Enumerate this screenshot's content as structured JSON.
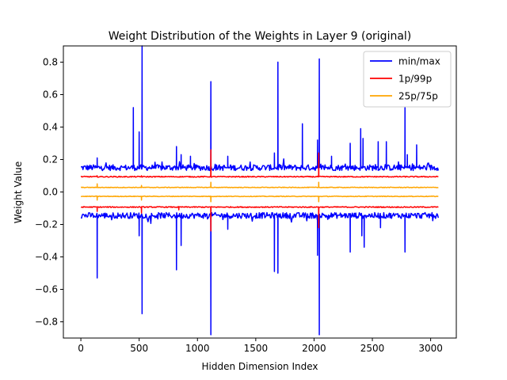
{
  "chart_data": {
    "type": "line",
    "title": "Weight Distribution of the Weights in Layer 9 (original)",
    "xlabel": "Hidden Dimension Index",
    "ylabel": "Weight Value",
    "xlim": [
      -150,
      3220
    ],
    "ylim": [
      -0.9,
      0.9
    ],
    "x_ticks": [
      0,
      500,
      1000,
      1500,
      2000,
      2500,
      3000
    ],
    "y_ticks": [
      -0.8,
      -0.6,
      -0.4,
      -0.2,
      0.0,
      0.2,
      0.4,
      0.6,
      0.8
    ],
    "x_tick_labels": [
      "0",
      "500",
      "1000",
      "1500",
      "2000",
      "2500",
      "3000"
    ],
    "y_tick_labels": [
      "−0.8",
      "−0.6",
      "−0.4",
      "−0.2",
      "0.0",
      "0.2",
      "0.4",
      "0.6",
      "0.8"
    ],
    "grid": false,
    "legend_position": "top-right",
    "legend": [
      {
        "label": "min/max",
        "color": "#0000ff"
      },
      {
        "label": "1p/99p",
        "color": "#ff0000"
      },
      {
        "label": "25p/75p",
        "color": "#ffa500"
      }
    ],
    "x_range": [
      0,
      3071
    ],
    "series": [
      {
        "name": "min/max",
        "color": "#0000ff",
        "upper_baseline": 0.15,
        "lower_baseline": -0.145,
        "upper_spikes": [
          [
            140,
            0.21
          ],
          [
            450,
            0.52
          ],
          [
            500,
            0.37
          ],
          [
            525,
            0.9
          ],
          [
            820,
            0.28
          ],
          [
            860,
            0.23
          ],
          [
            940,
            0.22
          ],
          [
            1115,
            0.68
          ],
          [
            1260,
            0.22
          ],
          [
            1690,
            0.8
          ],
          [
            1660,
            0.24
          ],
          [
            1900,
            0.42
          ],
          [
            2030,
            0.32
          ],
          [
            2045,
            0.82
          ],
          [
            2150,
            0.22
          ],
          [
            2310,
            0.3
          ],
          [
            2400,
            0.39
          ],
          [
            2420,
            0.33
          ],
          [
            2550,
            0.31
          ],
          [
            2620,
            0.31
          ],
          [
            2780,
            0.52
          ],
          [
            2800,
            0.23
          ],
          [
            2880,
            0.29
          ]
        ],
        "lower_spikes": [
          [
            140,
            -0.53
          ],
          [
            500,
            -0.27
          ],
          [
            525,
            -0.75
          ],
          [
            820,
            -0.48
          ],
          [
            860,
            -0.33
          ],
          [
            1115,
            -0.88
          ],
          [
            1260,
            -0.23
          ],
          [
            1660,
            -0.49
          ],
          [
            1690,
            -0.5
          ],
          [
            2030,
            -0.39
          ],
          [
            2045,
            -0.88
          ],
          [
            2310,
            -0.37
          ],
          [
            2410,
            -0.27
          ],
          [
            2430,
            -0.34
          ],
          [
            2570,
            -0.22
          ],
          [
            2780,
            -0.37
          ]
        ]
      },
      {
        "name": "1p/99p",
        "color": "#ff0000",
        "upper_baseline": 0.094,
        "lower_baseline": -0.093,
        "upper_spikes": [
          [
            140,
            0.1
          ],
          [
            520,
            0.1
          ],
          [
            1115,
            0.26
          ],
          [
            2040,
            0.24
          ]
        ],
        "lower_spikes": [
          [
            140,
            -0.12
          ],
          [
            520,
            -0.13
          ],
          [
            1115,
            -0.24
          ],
          [
            2040,
            -0.22
          ],
          [
            840,
            -0.11
          ]
        ]
      },
      {
        "name": "25p/75p",
        "color": "#ffa500",
        "upper_baseline": 0.028,
        "lower_baseline": -0.027,
        "upper_spikes": [
          [
            140,
            0.05
          ],
          [
            520,
            0.04
          ],
          [
            1115,
            0.06
          ],
          [
            2040,
            0.06
          ]
        ],
        "lower_spikes": [
          [
            140,
            -0.05
          ],
          [
            520,
            -0.05
          ],
          [
            1115,
            -0.06
          ],
          [
            2040,
            -0.06
          ]
        ]
      }
    ]
  }
}
